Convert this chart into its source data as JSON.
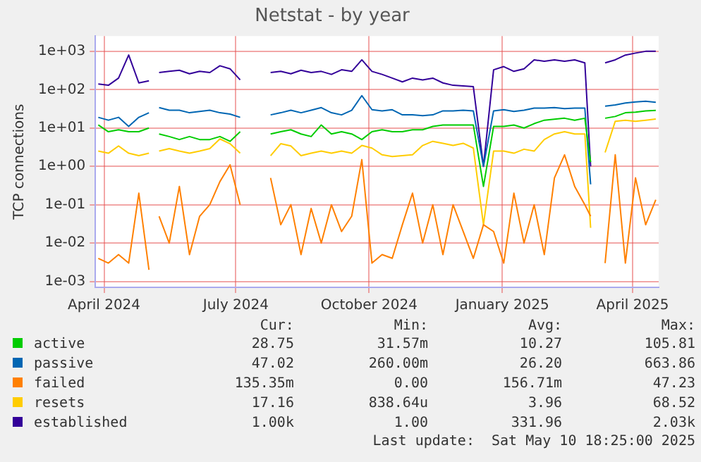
{
  "chart_data": {
    "type": "line",
    "title": "Netstat - by year",
    "ylabel": "TCP connections",
    "x": [
      "2024-03-28",
      "2024-04-04",
      "2024-04-11",
      "2024-04-18",
      "2024-04-25",
      "2024-05-02",
      "2024-05-06",
      "2024-05-09",
      "2024-05-16",
      "2024-05-23",
      "2024-05-30",
      "2024-06-06",
      "2024-06-13",
      "2024-06-20",
      "2024-06-27",
      "2024-07-04",
      "2024-07-15",
      "2024-07-25",
      "2024-08-01",
      "2024-08-08",
      "2024-08-15",
      "2024-08-22",
      "2024-08-29",
      "2024-09-05",
      "2024-09-12",
      "2024-09-19",
      "2024-09-26",
      "2024-10-03",
      "2024-10-10",
      "2024-10-17",
      "2024-10-24",
      "2024-10-31",
      "2024-11-07",
      "2024-11-14",
      "2024-11-21",
      "2024-11-28",
      "2024-12-05",
      "2024-12-12",
      "2024-12-19",
      "2024-12-26",
      "2025-01-02",
      "2025-01-09",
      "2025-01-16",
      "2025-01-23",
      "2025-01-30",
      "2025-02-06",
      "2025-02-13",
      "2025-02-20",
      "2025-02-27",
      "2025-03-03",
      "2025-03-07",
      "2025-03-13",
      "2025-03-20",
      "2025-03-27",
      "2025-04-03",
      "2025-04-10",
      "2025-04-17"
    ],
    "series": [
      {
        "name": "active",
        "color": "#00cc00",
        "values": [
          12,
          8,
          9,
          8,
          8,
          10,
          null,
          7,
          6,
          5,
          6,
          5,
          5,
          6,
          4.5,
          8,
          null,
          7,
          8,
          9,
          7,
          6,
          12,
          7,
          8,
          7,
          5,
          8,
          9,
          8,
          8,
          9,
          9,
          11,
          12,
          12,
          12,
          12,
          0.3,
          11,
          11,
          12,
          10,
          13,
          16,
          17,
          18,
          16,
          18,
          1.3,
          null,
          18,
          20,
          25,
          26,
          28,
          28.75
        ]
      },
      {
        "name": "passive",
        "color": "#0066b3",
        "values": [
          19,
          16,
          19,
          11,
          19,
          25,
          null,
          34,
          29,
          29,
          25,
          27,
          29,
          25,
          23,
          19,
          null,
          22,
          25,
          29,
          25,
          29,
          34,
          25,
          22,
          29,
          70,
          30,
          28,
          30,
          22,
          22,
          21,
          22,
          28,
          28,
          29,
          28,
          1,
          28,
          30,
          27,
          29,
          33,
          33,
          34,
          32,
          33,
          33,
          0.34,
          null,
          37,
          40,
          45,
          48,
          50,
          47.02
        ]
      },
      {
        "name": "failed",
        "color": "#ff8000",
        "values": [
          0.004,
          0.003,
          0.005,
          0.003,
          0.2,
          0.002,
          null,
          0.05,
          0.01,
          0.3,
          0.005,
          0.05,
          0.1,
          0.4,
          1.1,
          0.1,
          null,
          0.5,
          0.03,
          0.1,
          0.005,
          0.08,
          0.01,
          0.1,
          0.02,
          0.05,
          1.5,
          0.003,
          0.005,
          0.004,
          0.03,
          0.2,
          0.01,
          0.1,
          0.005,
          0.1,
          0.02,
          0.004,
          0.03,
          0.02,
          0.003,
          0.2,
          0.01,
          0.1,
          0.005,
          0.5,
          2,
          0.3,
          0.1,
          0.05,
          null,
          0.003,
          2,
          0.003,
          0.5,
          0.03,
          0.135
        ]
      },
      {
        "name": "resets",
        "color": "#ffcc00",
        "values": [
          2.5,
          2.2,
          3.4,
          2.2,
          1.9,
          2.2,
          null,
          2.5,
          2.9,
          2.5,
          2.2,
          2.5,
          2.9,
          5.2,
          3.9,
          2.2,
          null,
          1.9,
          3.9,
          3.4,
          1.9,
          2.2,
          2.5,
          2.2,
          2.5,
          2.2,
          3.5,
          3,
          2,
          1.8,
          1.9,
          2,
          3.5,
          4.5,
          4,
          3.5,
          4,
          3,
          0.03,
          2.5,
          2.5,
          2.2,
          2.8,
          2.5,
          5,
          7,
          8,
          7,
          7,
          0.025,
          null,
          2.3,
          15,
          16,
          15,
          16,
          17.16
        ]
      },
      {
        "name": "established",
        "color": "#330099",
        "values": [
          140,
          130,
          200,
          800,
          150,
          170,
          null,
          280,
          300,
          320,
          260,
          300,
          280,
          420,
          350,
          180,
          null,
          280,
          300,
          260,
          320,
          280,
          300,
          250,
          330,
          300,
          600,
          300,
          250,
          200,
          160,
          200,
          180,
          200,
          150,
          130,
          125,
          120,
          1,
          330,
          400,
          300,
          350,
          600,
          550,
          600,
          550,
          600,
          500,
          1,
          null,
          500,
          600,
          800,
          900,
          1000,
          1000
        ]
      }
    ],
    "xlim": [
      "2024-03-26",
      "2025-04-19"
    ],
    "xticks": [
      {
        "value": "2024-04-01",
        "label": "April 2024"
      },
      {
        "value": "2024-07-01",
        "label": "July 2024"
      },
      {
        "value": "2024-10-01",
        "label": "October 2024"
      },
      {
        "value": "2025-01-01",
        "label": "January 2025"
      },
      {
        "value": "2025-04-01",
        "label": "April 2025"
      }
    ],
    "ylim": [
      0.0007,
      2500
    ],
    "log": "y",
    "yticks": [
      {
        "value": 0.001,
        "label": "1e-03"
      },
      {
        "value": 0.01,
        "label": "1e-02"
      },
      {
        "value": 0.1,
        "label": "1e-01"
      },
      {
        "value": 1,
        "label": "1e+00"
      },
      {
        "value": 10,
        "label": "1e+01"
      },
      {
        "value": 100,
        "label": "1e+02"
      },
      {
        "value": 1000,
        "label": "1e+03"
      }
    ],
    "grid": true,
    "legend": "bottom",
    "marker": "none",
    "line_style": "solid",
    "annotations": [
      "Cur:",
      "Min:",
      "Avg:",
      "Max:",
      "28.75",
      "31.57m",
      "10.27",
      "105.81",
      "47.02",
      "260.00m",
      "26.20",
      "663.86",
      "135.35m",
      "0.00",
      "156.71m",
      "47.23",
      "17.16",
      "838.64u",
      "3.96",
      "68.52",
      "1.00k",
      "1.00",
      "331.96",
      "2.03k",
      "Last update:  Sat May 10 18:25:00 2025"
    ]
  }
}
